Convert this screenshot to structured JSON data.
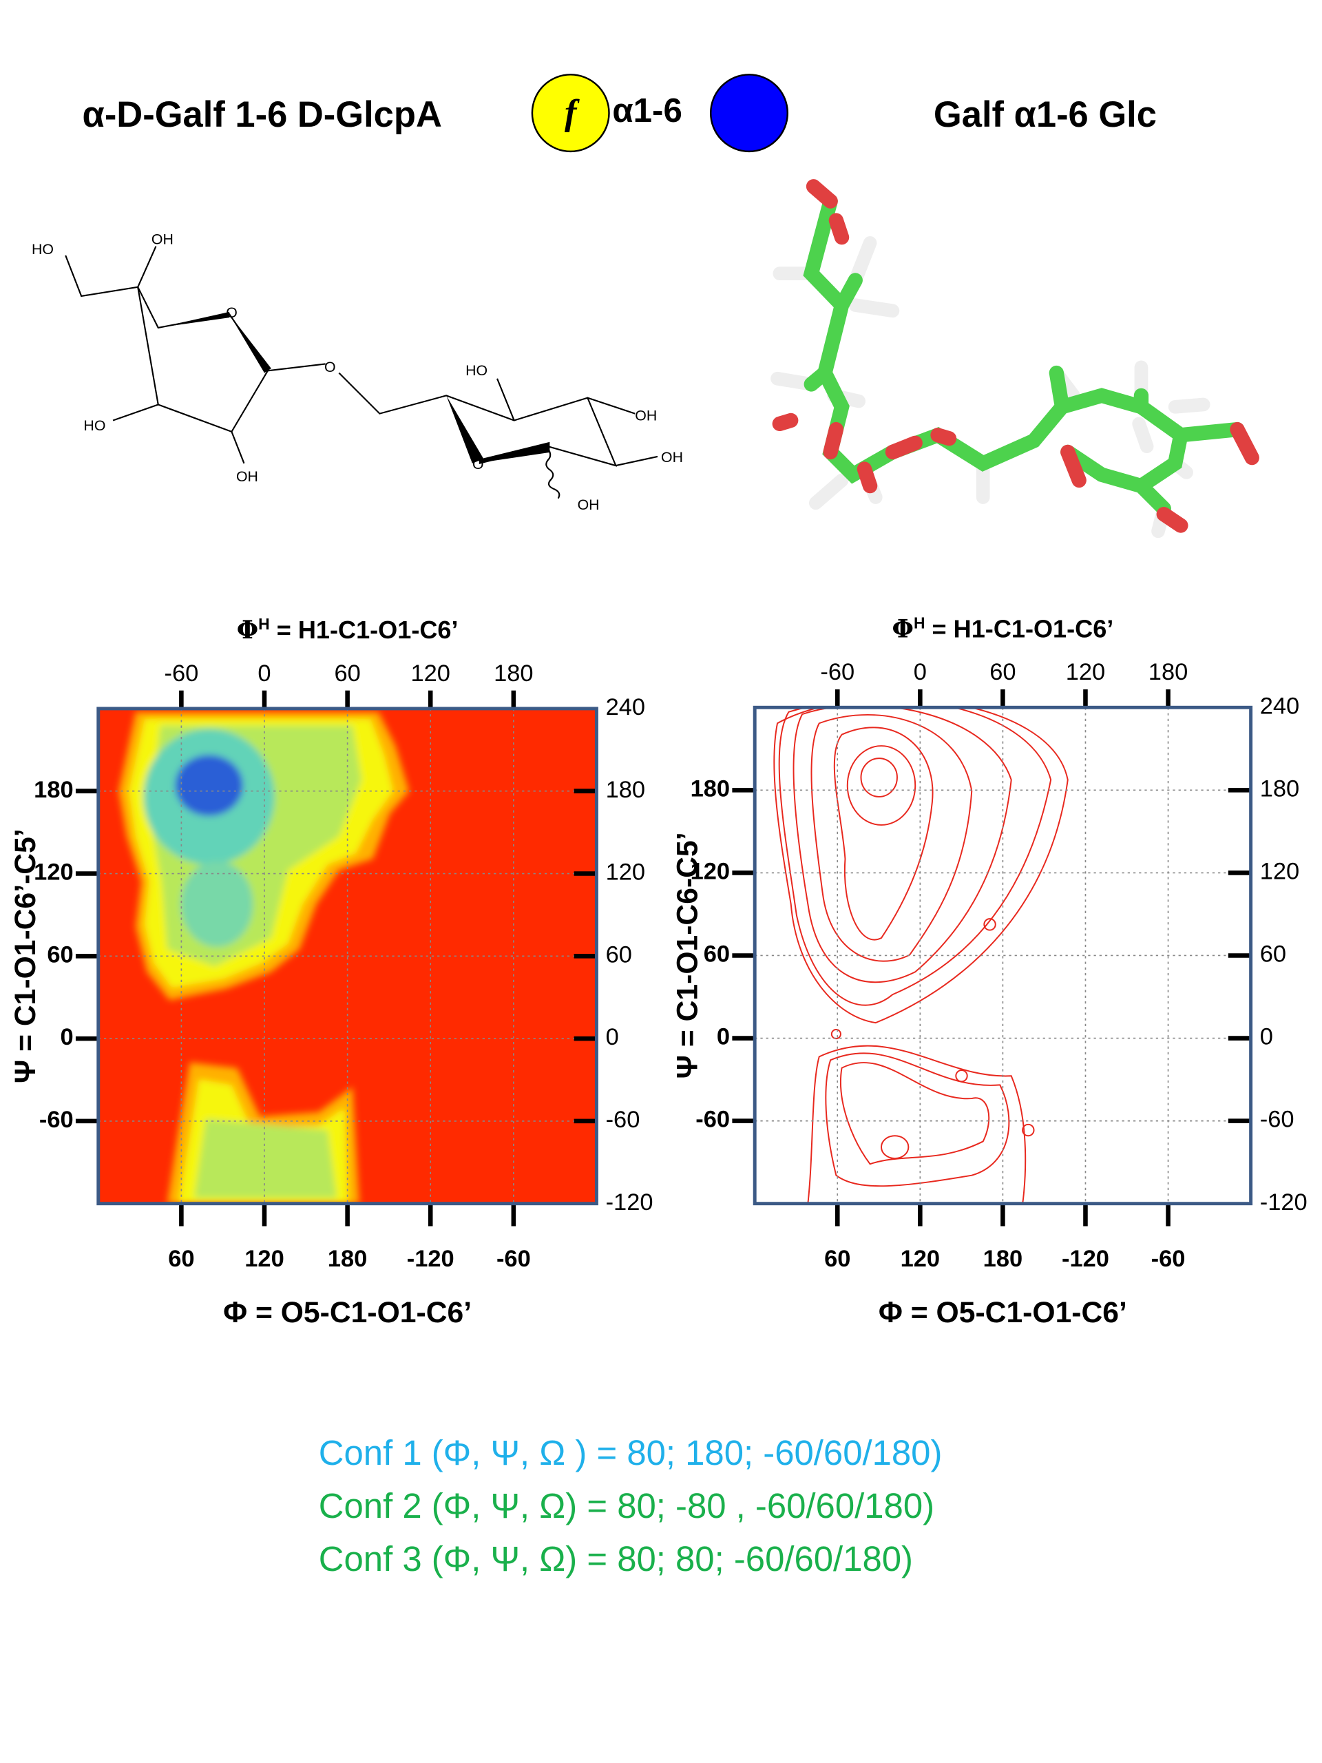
{
  "header": {
    "left_title": "α-D-Galf 1-6 D-GlcpA",
    "symbol_label": "f",
    "linkage": "α1-6",
    "right_title": "Galf α1-6 Glc"
  },
  "structure_labels": [
    "HO",
    "OH",
    "O",
    "O",
    "HO",
    "OH",
    "HO",
    "OH",
    "O",
    "OH",
    "OH"
  ],
  "plots": [
    {
      "top_label": {
        "symbol": "Φ",
        "sup": "H",
        "rest": " = H1-C1-O1-C6’"
      },
      "top_ticks": [
        -60,
        0,
        60,
        120,
        180
      ],
      "bottom_ticks": [
        60,
        120,
        180,
        -120,
        -60
      ],
      "left_ticks": [
        180,
        120,
        60,
        0,
        -60
      ],
      "right_ticks": [
        240,
        180,
        120,
        60,
        0,
        -60,
        -120
      ],
      "x_label": "Φ = O5-C1-O1-C6’",
      "y_label": "Ψ = C1-O1-C6’-C5’"
    },
    {
      "top_label": {
        "symbol": "Φ",
        "sup": "H",
        "rest": " = H1-C1-O1-C6’"
      },
      "top_ticks": [
        -60,
        0,
        60,
        120,
        180
      ],
      "bottom_ticks": [
        60,
        120,
        180,
        -120,
        -60
      ],
      "left_ticks": [
        180,
        120,
        60,
        0,
        -60
      ],
      "right_ticks": [
        240,
        180,
        120,
        60,
        0,
        -60,
        -120
      ],
      "x_label": "Φ = O5-C1-O1-C6’",
      "y_label": "Ψ = C1-O1-C6-C5’"
    }
  ],
  "conformations": [
    {
      "text": "Conf 1 (Φ, Ψ, Ω ) = 80; 180; -60/60/180)",
      "color": "#1fb0ea"
    },
    {
      "text": "Conf 2 (Φ, Ψ, Ω) =  80; -80 , -60/60/180)",
      "color": "#19b04b"
    },
    {
      "text": "Conf 3 (Φ, Ψ, Ω) = 80; 80;  -60/60/180)",
      "color": "#19b04b"
    }
  ]
}
